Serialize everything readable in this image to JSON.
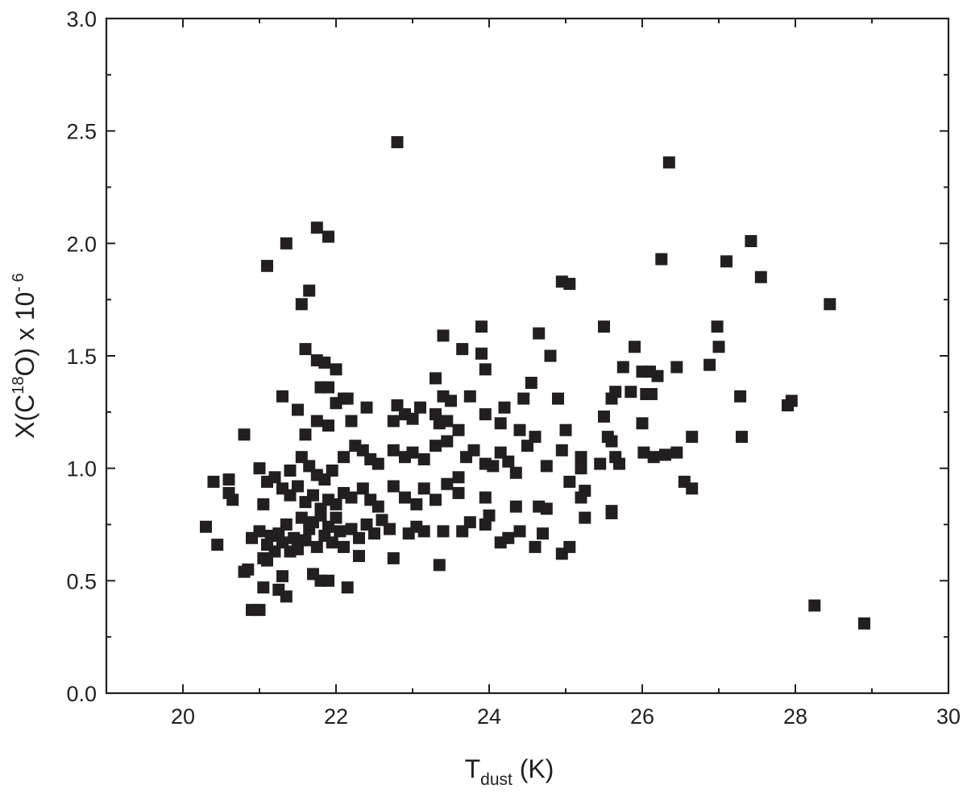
{
  "chart_data": {
    "type": "scatter",
    "title": "",
    "xlabel": {
      "main": "T",
      "sub": "dust",
      "unit": " (K)"
    },
    "ylabel": {
      "part1": "X(C",
      "sup1": "18",
      "part2": "O) x 10",
      "sup2": "- 6"
    },
    "xlim": [
      19,
      30
    ],
    "ylim": [
      0,
      3
    ],
    "xticks": [
      "20",
      "22",
      "24",
      "26",
      "28",
      "30"
    ],
    "yticks": [
      "0.0",
      "0.5",
      "1.0",
      "1.5",
      "2.0",
      "2.5",
      "3.0"
    ],
    "marker_color": "#231f20",
    "marker": "square",
    "grid": false,
    "points": [
      [
        22.8,
        2.45
      ],
      [
        26.35,
        2.36
      ],
      [
        21.75,
        2.07
      ],
      [
        21.35,
        2.0
      ],
      [
        21.9,
        2.03
      ],
      [
        27.42,
        2.01
      ],
      [
        21.1,
        1.9
      ],
      [
        26.25,
        1.93
      ],
      [
        27.1,
        1.92
      ],
      [
        24.95,
        1.83
      ],
      [
        25.05,
        1.82
      ],
      [
        27.55,
        1.85
      ],
      [
        21.65,
        1.79
      ],
      [
        21.55,
        1.73
      ],
      [
        28.45,
        1.73
      ],
      [
        23.9,
        1.63
      ],
      [
        25.5,
        1.63
      ],
      [
        26.98,
        1.63
      ],
      [
        23.4,
        1.59
      ],
      [
        24.65,
        1.6
      ],
      [
        21.6,
        1.53
      ],
      [
        23.65,
        1.53
      ],
      [
        23.9,
        1.51
      ],
      [
        24.8,
        1.5
      ],
      [
        25.9,
        1.54
      ],
      [
        27.0,
        1.54
      ],
      [
        21.75,
        1.48
      ],
      [
        21.85,
        1.47
      ],
      [
        22.0,
        1.44
      ],
      [
        23.95,
        1.44
      ],
      [
        25.75,
        1.45
      ],
      [
        26.0,
        1.43
      ],
      [
        26.1,
        1.43
      ],
      [
        26.2,
        1.41
      ],
      [
        26.45,
        1.45
      ],
      [
        26.88,
        1.46
      ],
      [
        21.3,
        1.32
      ],
      [
        21.8,
        1.36
      ],
      [
        21.9,
        1.36
      ],
      [
        22.1,
        1.31
      ],
      [
        22.15,
        1.31
      ],
      [
        23.3,
        1.4
      ],
      [
        23.4,
        1.32
      ],
      [
        23.5,
        1.3
      ],
      [
        23.75,
        1.32
      ],
      [
        24.45,
        1.31
      ],
      [
        24.55,
        1.38
      ],
      [
        24.9,
        1.31
      ],
      [
        25.6,
        1.31
      ],
      [
        25.65,
        1.34
      ],
      [
        25.85,
        1.34
      ],
      [
        26.05,
        1.33
      ],
      [
        26.12,
        1.33
      ],
      [
        27.28,
        1.32
      ],
      [
        27.9,
        1.28
      ],
      [
        27.95,
        1.3
      ],
      [
        20.8,
        1.15
      ],
      [
        21.5,
        1.26
      ],
      [
        21.6,
        1.15
      ],
      [
        21.75,
        1.21
      ],
      [
        21.9,
        1.19
      ],
      [
        22.0,
        1.29
      ],
      [
        22.2,
        1.21
      ],
      [
        22.4,
        1.27
      ],
      [
        22.8,
        1.28
      ],
      [
        22.75,
        1.21
      ],
      [
        22.9,
        1.24
      ],
      [
        23.0,
        1.22
      ],
      [
        23.1,
        1.27
      ],
      [
        23.3,
        1.24
      ],
      [
        23.35,
        1.2
      ],
      [
        23.45,
        1.21
      ],
      [
        23.6,
        1.17
      ],
      [
        23.95,
        1.24
      ],
      [
        24.15,
        1.2
      ],
      [
        24.2,
        1.27
      ],
      [
        24.4,
        1.17
      ],
      [
        25.0,
        1.17
      ],
      [
        25.5,
        1.23
      ],
      [
        25.55,
        1.14
      ],
      [
        25.6,
        1.12
      ],
      [
        26.0,
        1.2
      ],
      [
        26.65,
        1.14
      ],
      [
        27.3,
        1.14
      ],
      [
        21.0,
        1.0
      ],
      [
        21.2,
        0.96
      ],
      [
        21.4,
        0.99
      ],
      [
        21.55,
        1.05
      ],
      [
        21.65,
        1.01
      ],
      [
        21.75,
        0.97
      ],
      [
        21.85,
        0.95
      ],
      [
        21.95,
        0.99
      ],
      [
        22.1,
        1.05
      ],
      [
        22.25,
        1.1
      ],
      [
        22.35,
        1.08
      ],
      [
        22.45,
        1.04
      ],
      [
        22.55,
        1.02
      ],
      [
        22.75,
        1.08
      ],
      [
        22.9,
        1.05
      ],
      [
        23.0,
        1.07
      ],
      [
        23.15,
        1.04
      ],
      [
        23.3,
        1.1
      ],
      [
        23.45,
        1.12
      ],
      [
        23.6,
        0.96
      ],
      [
        23.7,
        1.05
      ],
      [
        23.8,
        1.08
      ],
      [
        23.95,
        1.02
      ],
      [
        24.05,
        1.01
      ],
      [
        24.15,
        1.07
      ],
      [
        24.25,
        1.03
      ],
      [
        24.35,
        0.98
      ],
      [
        24.5,
        1.1
      ],
      [
        24.6,
        1.14
      ],
      [
        24.75,
        1.01
      ],
      [
        24.95,
        1.08
      ],
      [
        25.05,
        0.94
      ],
      [
        25.2,
        1.05
      ],
      [
        25.2,
        1.0
      ],
      [
        25.45,
        1.02
      ],
      [
        25.65,
        1.05
      ],
      [
        25.7,
        1.02
      ],
      [
        26.02,
        1.07
      ],
      [
        26.15,
        1.05
      ],
      [
        26.3,
        1.06
      ],
      [
        26.45,
        1.07
      ],
      [
        26.55,
        0.94
      ],
      [
        26.65,
        0.91
      ],
      [
        20.4,
        0.94
      ],
      [
        20.6,
        0.95
      ],
      [
        20.6,
        0.89
      ],
      [
        20.65,
        0.86
      ],
      [
        21.1,
        0.94
      ],
      [
        21.3,
        0.91
      ],
      [
        21.4,
        0.88
      ],
      [
        21.5,
        0.92
      ],
      [
        21.6,
        0.85
      ],
      [
        21.7,
        0.88
      ],
      [
        21.8,
        0.82
      ],
      [
        21.9,
        0.86
      ],
      [
        22.0,
        0.84
      ],
      [
        22.1,
        0.89
      ],
      [
        22.2,
        0.87
      ],
      [
        22.35,
        0.91
      ],
      [
        22.45,
        0.86
      ],
      [
        22.55,
        0.83
      ],
      [
        22.75,
        0.92
      ],
      [
        22.9,
        0.87
      ],
      [
        23.05,
        0.84
      ],
      [
        23.15,
        0.91
      ],
      [
        23.3,
        0.86
      ],
      [
        23.45,
        0.93
      ],
      [
        23.6,
        0.89
      ],
      [
        23.95,
        0.87
      ],
      [
        24.0,
        0.79
      ],
      [
        24.35,
        0.83
      ],
      [
        24.65,
        0.83
      ],
      [
        24.75,
        0.82
      ],
      [
        25.2,
        0.87
      ],
      [
        25.25,
        0.9
      ],
      [
        25.6,
        0.81
      ],
      [
        21.05,
        0.84
      ],
      [
        20.3,
        0.74
      ],
      [
        20.45,
        0.66
      ],
      [
        20.8,
        0.54
      ],
      [
        20.85,
        0.55
      ],
      [
        20.9,
        0.69
      ],
      [
        21.0,
        0.72
      ],
      [
        21.05,
        0.6
      ],
      [
        21.1,
        0.66
      ],
      [
        21.15,
        0.7
      ],
      [
        21.2,
        0.63
      ],
      [
        21.25,
        0.71
      ],
      [
        21.3,
        0.67
      ],
      [
        21.35,
        0.75
      ],
      [
        21.4,
        0.63
      ],
      [
        21.45,
        0.69
      ],
      [
        21.5,
        0.64
      ],
      [
        21.55,
        0.78
      ],
      [
        21.6,
        0.68
      ],
      [
        21.65,
        0.73
      ],
      [
        21.7,
        0.76
      ],
      [
        21.75,
        0.65
      ],
      [
        21.8,
        0.79
      ],
      [
        21.85,
        0.7
      ],
      [
        21.9,
        0.74
      ],
      [
        21.95,
        0.67
      ],
      [
        22.0,
        0.78
      ],
      [
        22.05,
        0.72
      ],
      [
        22.1,
        0.65
      ],
      [
        22.2,
        0.73
      ],
      [
        22.3,
        0.69
      ],
      [
        22.4,
        0.75
      ],
      [
        22.5,
        0.71
      ],
      [
        22.6,
        0.77
      ],
      [
        22.7,
        0.73
      ],
      [
        22.75,
        0.6
      ],
      [
        22.95,
        0.71
      ],
      [
        23.05,
        0.74
      ],
      [
        23.15,
        0.72
      ],
      [
        23.35,
        0.57
      ],
      [
        23.4,
        0.72
      ],
      [
        23.65,
        0.72
      ],
      [
        23.75,
        0.76
      ],
      [
        23.95,
        0.75
      ],
      [
        24.15,
        0.67
      ],
      [
        24.25,
        0.69
      ],
      [
        24.4,
        0.72
      ],
      [
        24.6,
        0.65
      ],
      [
        24.7,
        0.71
      ],
      [
        24.95,
        0.62
      ],
      [
        25.05,
        0.65
      ],
      [
        25.25,
        0.78
      ],
      [
        25.6,
        0.8
      ],
      [
        21.05,
        0.47
      ],
      [
        21.1,
        0.59
      ],
      [
        21.25,
        0.46
      ],
      [
        21.3,
        0.52
      ],
      [
        21.35,
        0.43
      ],
      [
        21.7,
        0.53
      ],
      [
        21.8,
        0.5
      ],
      [
        21.9,
        0.5
      ],
      [
        22.15,
        0.47
      ],
      [
        22.3,
        0.61
      ],
      [
        20.9,
        0.37
      ],
      [
        21.0,
        0.37
      ],
      [
        28.25,
        0.39
      ],
      [
        28.9,
        0.31
      ]
    ]
  }
}
